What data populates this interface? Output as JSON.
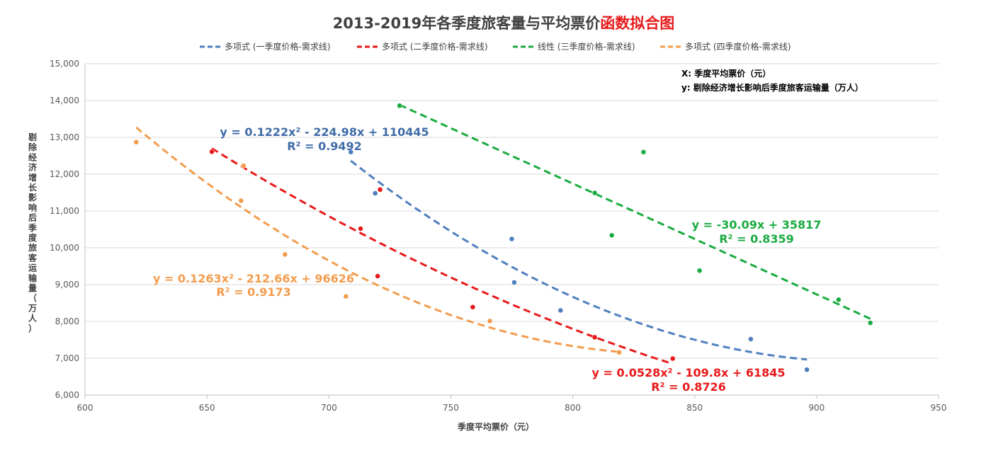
{
  "chart_data": {
    "type": "scatter",
    "title": {
      "black": "2013-2019年各季度旅客量与平均票价",
      "red": "函数拟合图"
    },
    "xlabel": "季度平均票价（元）",
    "ylabel": "剔除经济增长影响后季度旅客运输量（万人）",
    "xlim": [
      600,
      950
    ],
    "ylim": [
      6000,
      15000
    ],
    "x_ticks": [
      600,
      650,
      700,
      750,
      800,
      850,
      900,
      950
    ],
    "y_ticks": [
      6000,
      7000,
      8000,
      9000,
      10000,
      11000,
      12000,
      13000,
      14000,
      15000
    ],
    "grid": true,
    "legend_position": "top",
    "annotation": [
      "X: 季度平均票价（元）",
      "y: 剔除经济增长影响后季度旅客运输量（万人）"
    ],
    "series": [
      {
        "name": "多项式 (一季度价格-需求线)",
        "color": "#4F7FBF",
        "fit": "poly2",
        "coef": [
          0.1222,
          -224.98,
          110445
        ],
        "fit_range": [
          709,
          896
        ],
        "equation": "y = 0.1222x² - 224.98x + 110445",
        "r2": "R² = 0.9492",
        "points": [
          [
            709,
            12600
          ],
          [
            719,
            11480
          ],
          [
            775,
            10240
          ],
          [
            776,
            9060
          ],
          [
            795,
            8300
          ],
          [
            873,
            7520
          ],
          [
            896,
            6690
          ]
        ]
      },
      {
        "name": "多项式 (二季度价格-需求线)",
        "color": "#E8191A",
        "fit": "poly2",
        "coef": [
          0.0528,
          -109.8,
          61845
        ],
        "fit_range": [
          652,
          840
        ],
        "equation": "y = 0.0528x² - 109.8x + 61845",
        "r2": "R² = 0.8726",
        "points": [
          [
            652,
            12610
          ],
          [
            721,
            11580
          ],
          [
            713,
            10520
          ],
          [
            720,
            9230
          ],
          [
            759,
            8390
          ],
          [
            809,
            7570
          ],
          [
            841,
            6990
          ]
        ]
      },
      {
        "name": "线性 (三季度价格-需求线)",
        "color": "#1AAB40",
        "fit": "linear",
        "coef": [
          -30.09,
          35817
        ],
        "fit_range": [
          729,
          922
        ],
        "equation": "y = -30.09x + 35817",
        "r2": "R² = 0.8359",
        "points": [
          [
            729,
            13860
          ],
          [
            809,
            11490
          ],
          [
            829,
            12600
          ],
          [
            816,
            10340
          ],
          [
            852,
            9380
          ],
          [
            909,
            8590
          ],
          [
            922,
            7960
          ]
        ]
      },
      {
        "name": "多项式 (四季度价格-需求线)",
        "color": "#F39C4E",
        "fit": "poly2",
        "coef": [
          0.1263,
          -212.66,
          96626
        ],
        "fit_range": [
          621,
          819
        ],
        "equation": "y = 0.1263x² - 212.66x + 96626",
        "r2": "R² = 0.9173",
        "points": [
          [
            621,
            12870
          ],
          [
            665,
            12230
          ],
          [
            664,
            11280
          ],
          [
            682,
            9820
          ],
          [
            707,
            8680
          ],
          [
            766,
            8010
          ],
          [
            819,
            7160
          ]
        ]
      }
    ]
  }
}
